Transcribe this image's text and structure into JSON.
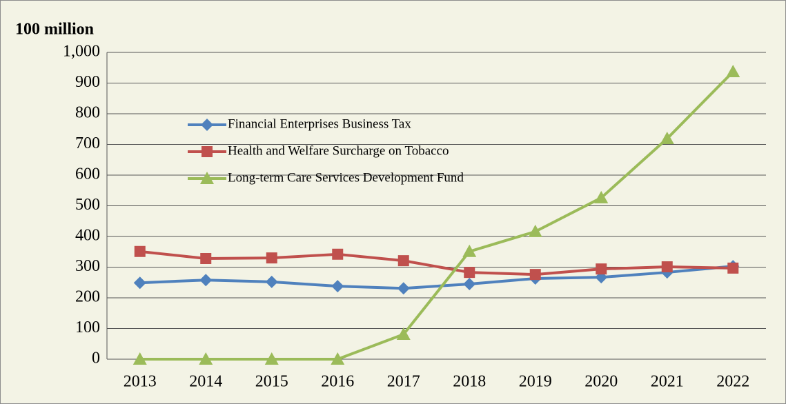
{
  "chart_data": {
    "type": "line",
    "y_axis_label": "100 million",
    "categories": [
      "2013",
      "2014",
      "2015",
      "2016",
      "2017",
      "2018",
      "2019",
      "2020",
      "2021",
      "2022"
    ],
    "series": [
      {
        "name": "Financial Enterprises Business Tax",
        "color": "#4f81bd",
        "marker": "diamond",
        "values": [
          249,
          258,
          252,
          238,
          231,
          245,
          263,
          267,
          283,
          303
        ]
      },
      {
        "name": "Health and Welfare Surcharge on Tobacco",
        "color": "#c0504d",
        "marker": "square",
        "values": [
          351,
          328,
          330,
          342,
          321,
          283,
          276,
          294,
          301,
          297
        ]
      },
      {
        "name": "Long-term Care Services Development Fund",
        "color": "#9bbb59",
        "marker": "triangle",
        "values": [
          0,
          0,
          0,
          0,
          81,
          351,
          416,
          526,
          719,
          937
        ]
      }
    ],
    "ylim": [
      0,
      1000
    ],
    "yticks": [
      0,
      100,
      200,
      300,
      400,
      500,
      600,
      700,
      800,
      900,
      {
        "value": 1000,
        "label": "1,000"
      }
    ],
    "grid": true,
    "legend": "inside-left"
  }
}
